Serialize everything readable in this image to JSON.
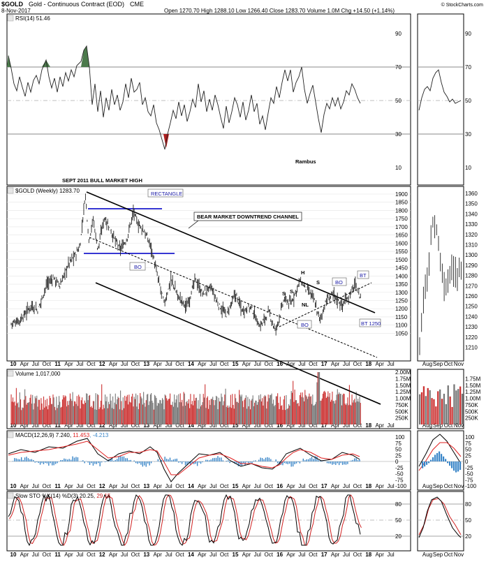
{
  "header": {
    "symbol": "$GOLD",
    "description": "Gold - Continuous Contract (EOD)",
    "exchange": "CME",
    "date": "8-Nov-2017",
    "quote": "Open 1270.70   High 1288.10   Low 1266.40   Close 1283.70   Volume 1.0M   Chg +14.50 (+1.14%)",
    "credit": "© StockCharts.com"
  },
  "rsi": {
    "label": "RSI(14) 51.46",
    "ticks": [
      "90",
      "70",
      "50",
      "30",
      "10"
    ],
    "annotations": {
      "rambus": "Rambus",
      "bull_high": "SEPT 2011 BULL MARKET HIGH"
    }
  },
  "price": {
    "label": "$GOLD (Weekly) 1283.70",
    "ticks_main": [
      "1900",
      "1850",
      "1800",
      "1750",
      "1700",
      "1650",
      "1600",
      "1550",
      "1500",
      "1450",
      "1400",
      "1350",
      "1300",
      "1250",
      "1200",
      "1150",
      "1100",
      "1050"
    ],
    "ticks_zoom": [
      "1360",
      "1350",
      "1340",
      "1330",
      "1320",
      "1310",
      "1300",
      "1290",
      "1280",
      "1270",
      "1260",
      "1250",
      "1240",
      "1230",
      "1220",
      "1210"
    ],
    "annotations": {
      "channel": "BEAR MARKET DOWNTREND  CHANNEL",
      "rectangle": "RECTANGLE",
      "bo_left": "BO",
      "bo_mid": "BO",
      "bo_right": "BO",
      "bt": "BT",
      "bt1250": "BT 1250",
      "s1": "S",
      "s2": "S",
      "h": "H",
      "s3": "S",
      "nl": "NL"
    }
  },
  "time_axis": {
    "main": [
      "10",
      "Apr",
      "Jul",
      "Oct",
      "11",
      "Apr",
      "Jul",
      "Oct",
      "12",
      "Apr",
      "Jul",
      "Oct",
      "13",
      "Apr",
      "Jul",
      "Oct",
      "14",
      "Apr",
      "Jul",
      "Oct",
      "15",
      "Apr",
      "Jul",
      "Oct",
      "16",
      "Apr",
      "Jul",
      "Oct",
      "17",
      "Apr",
      "Jul",
      "Oct",
      "18",
      "Apr",
      "Jul"
    ],
    "zoom": [
      "Aug",
      "Sep",
      "Oct",
      "Nov"
    ]
  },
  "volume": {
    "label": "Volume 1,017,000",
    "ticks": [
      "2.00M",
      "1.75M",
      "1.50M",
      "1.25M",
      "1.00M",
      "750K",
      "500K",
      "250K"
    ],
    "ticks_zoom": [
      "1.75M",
      "1.50M",
      "1.25M",
      "1.00M",
      "750K",
      "500K",
      "250K"
    ]
  },
  "macd": {
    "label_prefix": "MACD(12,26,9) 7.240, ",
    "signal_value": "11.453",
    "hist_value": ", -4.213",
    "ticks": [
      "100",
      "75",
      "50",
      "25",
      "0",
      "-25",
      "-50",
      "-75",
      "-100"
    ]
  },
  "sto": {
    "label_prefix": "Slow STO %K(14) %D(3) 20.25, ",
    "d_value": "29.15",
    "ticks": [
      "80",
      "50",
      "20"
    ]
  },
  "colors": {
    "up_volume": "#cc3333",
    "down_volume": "#777777",
    "macd_hist": "#3a86c8",
    "signal": "#e02020",
    "label_box": "#1a1aa6",
    "rsi_fill_high": "#4c7a4c",
    "rsi_fill_low": "#b02020"
  },
  "chart_data": {
    "type": "line",
    "title": "$GOLD Gold - Continuous Contract (EOD) CME",
    "xlabel": "",
    "ylabel": "",
    "x": [
      "2010",
      "2011",
      "2012",
      "2013",
      "2014",
      "2015",
      "2016",
      "2017",
      "2018"
    ],
    "series": [
      {
        "name": "$GOLD (Weekly)",
        "values": [
          1100,
          1420,
          1650,
          1660,
          1240,
          1200,
          1060,
          1160,
          1283.7
        ]
      }
    ],
    "ylim": [
      1030,
      1930
    ],
    "grid": true,
    "legend": "top-left"
  }
}
